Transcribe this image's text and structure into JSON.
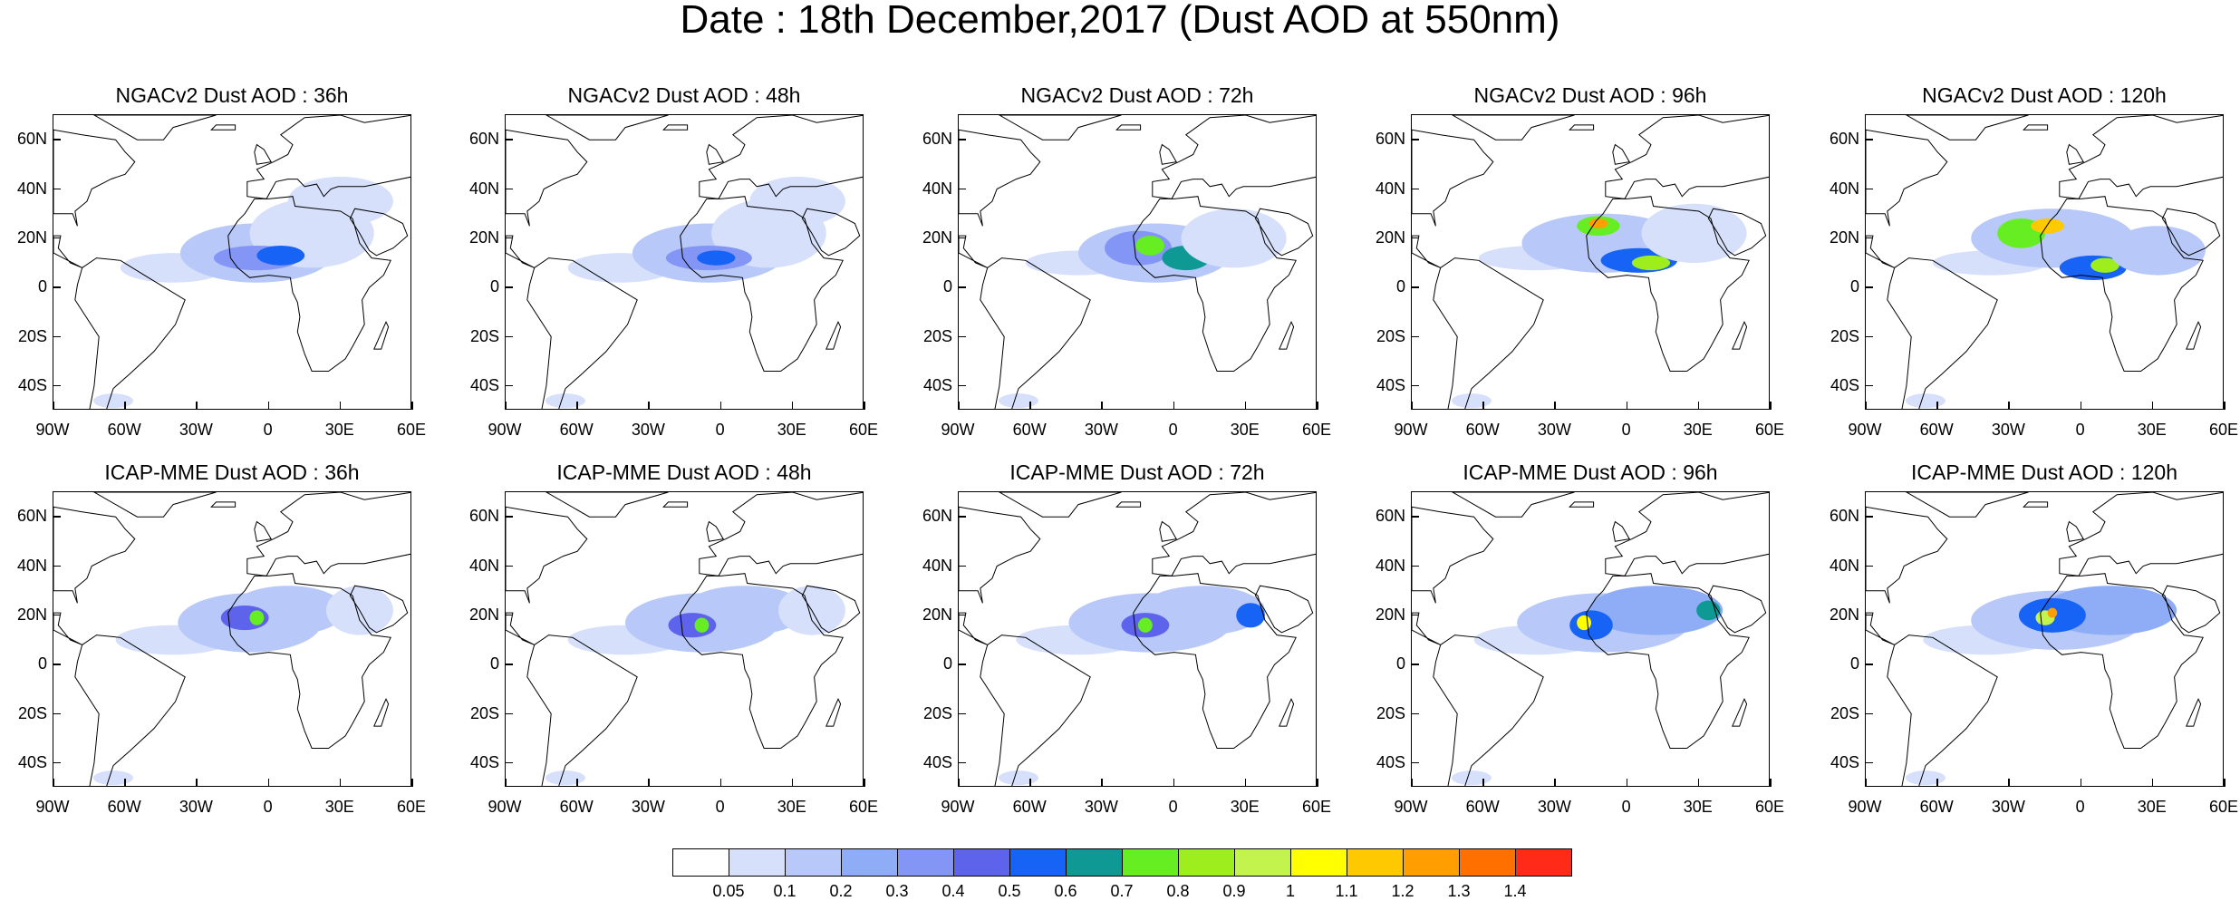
{
  "title": "Date : 18th December,2017 (Dust AOD at 550nm)",
  "panels": [
    {
      "title": "NGACv2 Dust AOD : 36h",
      "model": "NGACv2",
      "lead": "36h"
    },
    {
      "title": "NGACv2 Dust AOD : 48h",
      "model": "NGACv2",
      "lead": "48h"
    },
    {
      "title": "NGACv2 Dust AOD : 72h",
      "model": "NGACv2",
      "lead": "72h"
    },
    {
      "title": "NGACv2 Dust AOD : 96h",
      "model": "NGACv2",
      "lead": "96h"
    },
    {
      "title": "NGACv2 Dust AOD : 120h",
      "model": "NGACv2",
      "lead": "120h"
    },
    {
      "title": "ICAP-MME Dust AOD : 36h",
      "model": "ICAP-MME",
      "lead": "36h"
    },
    {
      "title": "ICAP-MME Dust AOD : 48h",
      "model": "ICAP-MME",
      "lead": "48h"
    },
    {
      "title": "ICAP-MME Dust AOD : 72h",
      "model": "ICAP-MME",
      "lead": "72h"
    },
    {
      "title": "ICAP-MME Dust AOD : 96h",
      "model": "ICAP-MME",
      "lead": "96h"
    },
    {
      "title": "ICAP-MME Dust AOD : 120h",
      "model": "ICAP-MME",
      "lead": "120h"
    }
  ],
  "map_extent": {
    "lon": [
      -90,
      60
    ],
    "lat": [
      -50,
      70
    ]
  },
  "lon_ticks": [
    {
      "value": -90,
      "label": "90W"
    },
    {
      "value": -60,
      "label": "60W"
    },
    {
      "value": -30,
      "label": "30W"
    },
    {
      "value": 0,
      "label": "0"
    },
    {
      "value": 30,
      "label": "30E"
    },
    {
      "value": 60,
      "label": "60E"
    }
  ],
  "lat_ticks": [
    {
      "value": 60,
      "label": "60N"
    },
    {
      "value": 40,
      "label": "40N"
    },
    {
      "value": 20,
      "label": "20N"
    },
    {
      "value": 0,
      "label": "0"
    },
    {
      "value": -20,
      "label": "20S"
    },
    {
      "value": -40,
      "label": "40S"
    }
  ],
  "colorbar": {
    "colors": [
      "#ffffff",
      "#d6e0fb",
      "#b8c8f8",
      "#8fadf7",
      "#8496f5",
      "#5e63ec",
      "#1763f5",
      "#0f9994",
      "#66ee22",
      "#9dee1c",
      "#c3f44d",
      "#ffff00",
      "#ffc900",
      "#ff9e00",
      "#ff7000",
      "#ff2a18"
    ],
    "labels": [
      "0.05",
      "0.1",
      "0.2",
      "0.3",
      "0.4",
      "0.5",
      "0.6",
      "0.7",
      "0.8",
      "0.9",
      "1",
      "1.1",
      "1.2",
      "1.3",
      "1.4"
    ]
  }
}
